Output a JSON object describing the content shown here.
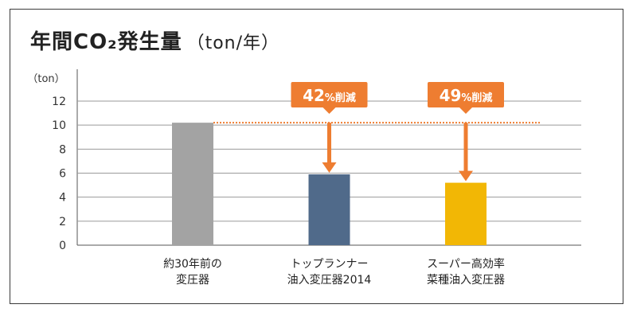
{
  "title": {
    "main": "年間CO₂発生量",
    "unit": "（ton/年）"
  },
  "chart_data": {
    "type": "bar",
    "title": "年間CO₂発生量（ton/年）",
    "ylabel": "（ton）",
    "ylim": [
      0,
      12
    ],
    "yticks": [
      0,
      2,
      4,
      6,
      8,
      10,
      12
    ],
    "categories": [
      [
        "約30年前の",
        "変圧器"
      ],
      [
        "トップランナー",
        "油入変圧器2014"
      ],
      [
        "スーパー高効率",
        "菜種油入変圧器"
      ]
    ],
    "values": [
      10.2,
      5.9,
      5.2
    ],
    "colors": [
      "#a3a3a3",
      "#506a8a",
      "#f2b705"
    ],
    "reference_line": {
      "value": 10.2,
      "color": "#ee7d31"
    },
    "annotations": [
      {
        "text": "42%削減",
        "number": "42",
        "suffix": "%削減",
        "category_index": 1,
        "color": "#ee7d31"
      },
      {
        "text": "49%削減",
        "number": "49",
        "suffix": "%削減",
        "category_index": 2,
        "color": "#ee7d31"
      }
    ],
    "grid": true
  }
}
